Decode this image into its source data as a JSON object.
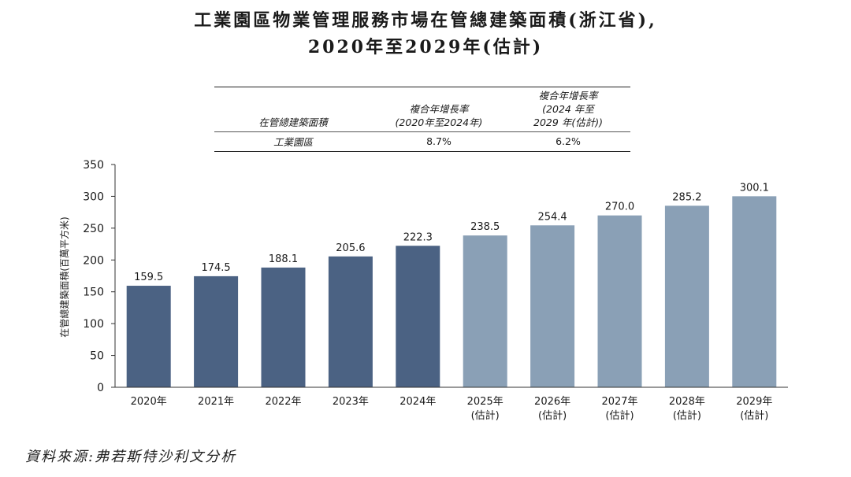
{
  "title": {
    "line1": "工業園區物業管理服務市場在管總建築面積(浙江省),",
    "line2": "2020年至2029年(估計)"
  },
  "cagr_table": {
    "header": {
      "col1": "在管總建築面積",
      "col2_line1": "複合年增長率",
      "col2_line2": "(2020年至2024年)",
      "col3_line1": "複合年增長率",
      "col3_line2": "(2024 年至",
      "col3_line3": "2029 年(估計))"
    },
    "row": {
      "label": "工業園區",
      "cagr_2020_2024": "8.7%",
      "cagr_2024_2029": "6.2%"
    }
  },
  "chart_data": {
    "type": "bar",
    "categories": [
      "2020年",
      "2021年",
      "2022年",
      "2023年",
      "2024年",
      "2025年",
      "2026年",
      "2027年",
      "2028年",
      "2029年"
    ],
    "category_sublabels": [
      "",
      "",
      "",
      "",
      "",
      "(估計)",
      "(估計)",
      "(估計)",
      "(估計)",
      "(估計)"
    ],
    "values": [
      159.5,
      174.5,
      188.1,
      205.6,
      222.3,
      238.5,
      254.4,
      270.0,
      285.2,
      300.1
    ],
    "value_labels": [
      "159.5",
      "174.5",
      "188.1",
      "205.6",
      "222.3",
      "238.5",
      "254.4",
      "270.0",
      "285.2",
      "300.1"
    ],
    "ylabel": "在管總建築面積(百萬平方米)",
    "ylim": [
      0,
      350
    ],
    "yticks": [
      0,
      50,
      100,
      150,
      200,
      250,
      300,
      350
    ],
    "grid": false,
    "colors": {
      "historical": "#4b6283",
      "estimated": "#8aa0b6"
    },
    "estimated_from_index": 5
  },
  "source": "資料來源:弗若斯特沙利文分析"
}
